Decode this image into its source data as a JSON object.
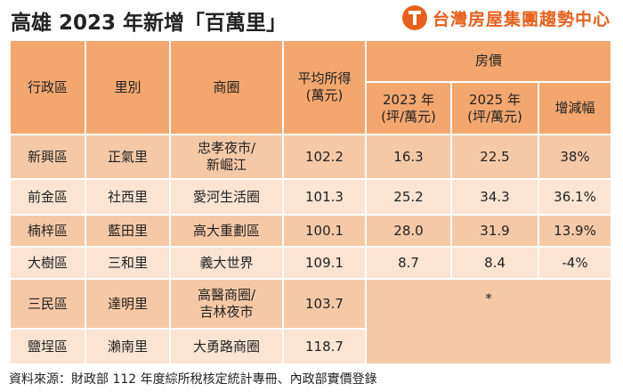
{
  "title": "高雄 2023 年新增「百萬里」",
  "brand": {
    "logo": "taiwan-realty-logo",
    "name": "台灣房屋集團趨勢中心"
  },
  "headers": {
    "district": "行政區",
    "village": "里別",
    "area": "商圈",
    "income": [
      "平均所得",
      "(萬元)"
    ],
    "price": "房價",
    "y2023": [
      "2023 年",
      "(坪/萬元)"
    ],
    "y2025": [
      "2025 年",
      "(坪/萬元)"
    ],
    "change": "增減幅"
  },
  "rows": [
    {
      "district": "新興區",
      "village": "正氣里",
      "area": [
        "忠孝夜市/",
        "新崛江"
      ],
      "income": "102.2",
      "p2023": "16.3",
      "p2025": "22.5",
      "change": "38%"
    },
    {
      "district": "前金區",
      "village": "社西里",
      "area": [
        "愛河生活圈"
      ],
      "income": "101.3",
      "p2023": "25.2",
      "p2025": "34.3",
      "change": "36.1%"
    },
    {
      "district": "楠梓區",
      "village": "藍田里",
      "area": [
        "高大重劃區"
      ],
      "income": "100.1",
      "p2023": "28.0",
      "p2025": "31.9",
      "change": "13.9%"
    },
    {
      "district": "大樹區",
      "village": "三和里",
      "area": [
        "義大世界"
      ],
      "income": "109.1",
      "p2023": "8.7",
      "p2025": "8.4",
      "change": "-4%"
    },
    {
      "district": "三民區",
      "village": "達明里",
      "area": [
        "高醫商圈/",
        "吉林夜市"
      ],
      "income": "103.7",
      "merged": "*"
    },
    {
      "district": "鹽埕區",
      "village": "瀨南里",
      "area": [
        "大勇路商圈"
      ],
      "income": "118.7",
      "merged": ""
    }
  ],
  "source": "資料來源：財政部 112 年度綜所稅核定統計專冊、內政部實價登錄"
}
